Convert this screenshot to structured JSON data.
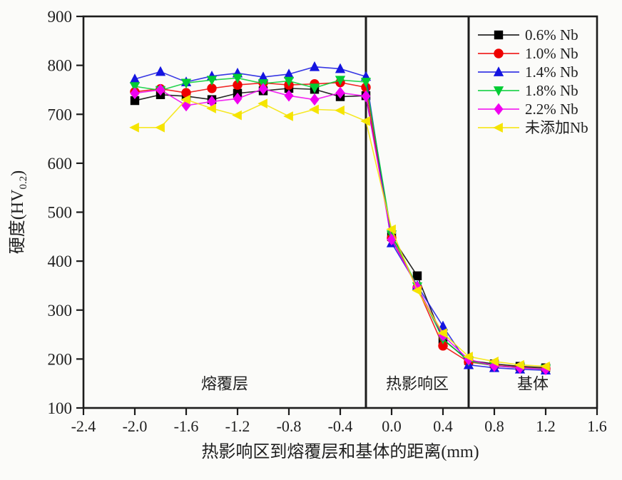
{
  "figure": {
    "background": "#fbfbf9",
    "axis_color": "#1c1c1c",
    "text_color": "#1f1f1f"
  },
  "chart_data": {
    "type": "line",
    "title": "",
    "xlabel": "热影响区到熔覆层和基体的距离(mm)",
    "ylabel": "硬度(HV0.2)",
    "ylabel_parts": {
      "prefix": "硬度(HV",
      "subscript": "0.2",
      "suffix": ")"
    },
    "xlim": [
      -2.4,
      1.6
    ],
    "ylim": [
      100,
      900
    ],
    "x_ticks": [
      -2.4,
      -2.0,
      -1.6,
      -1.2,
      -0.8,
      -0.4,
      0.0,
      0.4,
      0.8,
      1.2,
      1.6
    ],
    "x_tick_labels": [
      "-2.4",
      "-2.0",
      "-1.6",
      "-1.2",
      "-0.8",
      "-0.4",
      "0.0",
      "0.4",
      "0.8",
      "1.2",
      "1.6"
    ],
    "y_ticks": [
      100,
      200,
      300,
      400,
      500,
      600,
      700,
      800,
      900
    ],
    "grid": false,
    "legend_position": "top-right-inside",
    "x": [
      -2.0,
      -1.8,
      -1.6,
      -1.4,
      -1.2,
      -1.0,
      -0.8,
      -0.6,
      -0.4,
      -0.2,
      0.0,
      0.2,
      0.4,
      0.6,
      0.8,
      1.0,
      1.2
    ],
    "series": [
      {
        "name": "0.6% Nb",
        "color": "#000000",
        "marker": "square",
        "values": [
          728,
          740,
          737,
          730,
          743,
          748,
          753,
          751,
          736,
          738,
          450,
          370,
          240,
          197,
          190,
          185,
          182
        ]
      },
      {
        "name": "1.0% Nb",
        "color": "#ee0000",
        "marker": "circle",
        "values": [
          746,
          752,
          744,
          753,
          760,
          764,
          760,
          762,
          765,
          755,
          447,
          346,
          227,
          194,
          187,
          183,
          180
        ]
      },
      {
        "name": "1.4% Nb",
        "color": "#1414e0",
        "marker": "triangle-up",
        "values": [
          772,
          787,
          766,
          778,
          784,
          776,
          782,
          797,
          793,
          777,
          437,
          350,
          267,
          188,
          182,
          179,
          177
        ]
      },
      {
        "name": "1.8% Nb",
        "color": "#00cc33",
        "marker": "triangle-down",
        "values": [
          757,
          749,
          764,
          770,
          774,
          763,
          768,
          754,
          770,
          766,
          454,
          348,
          241,
          196,
          186,
          182,
          180
        ]
      },
      {
        "name": "2.2% Nb",
        "color": "#f000f0",
        "marker": "diamond",
        "values": [
          743,
          750,
          718,
          726,
          732,
          752,
          738,
          730,
          744,
          737,
          444,
          347,
          248,
          199,
          186,
          182,
          179
        ]
      },
      {
        "name": "未添加Nb",
        "color": "#f5e400",
        "marker": "triangle-left",
        "values": [
          673,
          673,
          730,
          712,
          698,
          722,
          696,
          710,
          708,
          686,
          465,
          340,
          253,
          205,
          195,
          188,
          185
        ]
      }
    ],
    "vlines": [
      -0.2,
      0.6
    ],
    "region_labels": [
      {
        "text": "熔覆层",
        "x": -1.3,
        "y": 150
      },
      {
        "text": "热影响区",
        "x": 0.2,
        "y": 150
      },
      {
        "text": "基体",
        "x": 1.1,
        "y": 150
      }
    ]
  }
}
